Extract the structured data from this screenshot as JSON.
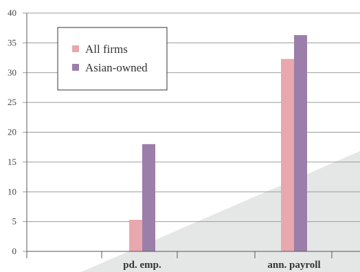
{
  "chart_data": {
    "type": "bar",
    "title": "",
    "xlabel": "",
    "ylabel": "",
    "ylim": [
      0,
      40
    ],
    "yticks": [
      0,
      5,
      10,
      15,
      20,
      25,
      30,
      35,
      40
    ],
    "categories": [
      "",
      "pd. emp.",
      "ann. payroll"
    ],
    "series": [
      {
        "name": "All firms",
        "color": "#e8a8ae",
        "values": [
          0,
          5.3,
          32.3
        ]
      },
      {
        "name": "Asian-owned",
        "color": "#9b7eaa",
        "values": [
          0,
          18.0,
          36.3
        ]
      }
    ],
    "grid": true,
    "legend_position": "top-left"
  }
}
